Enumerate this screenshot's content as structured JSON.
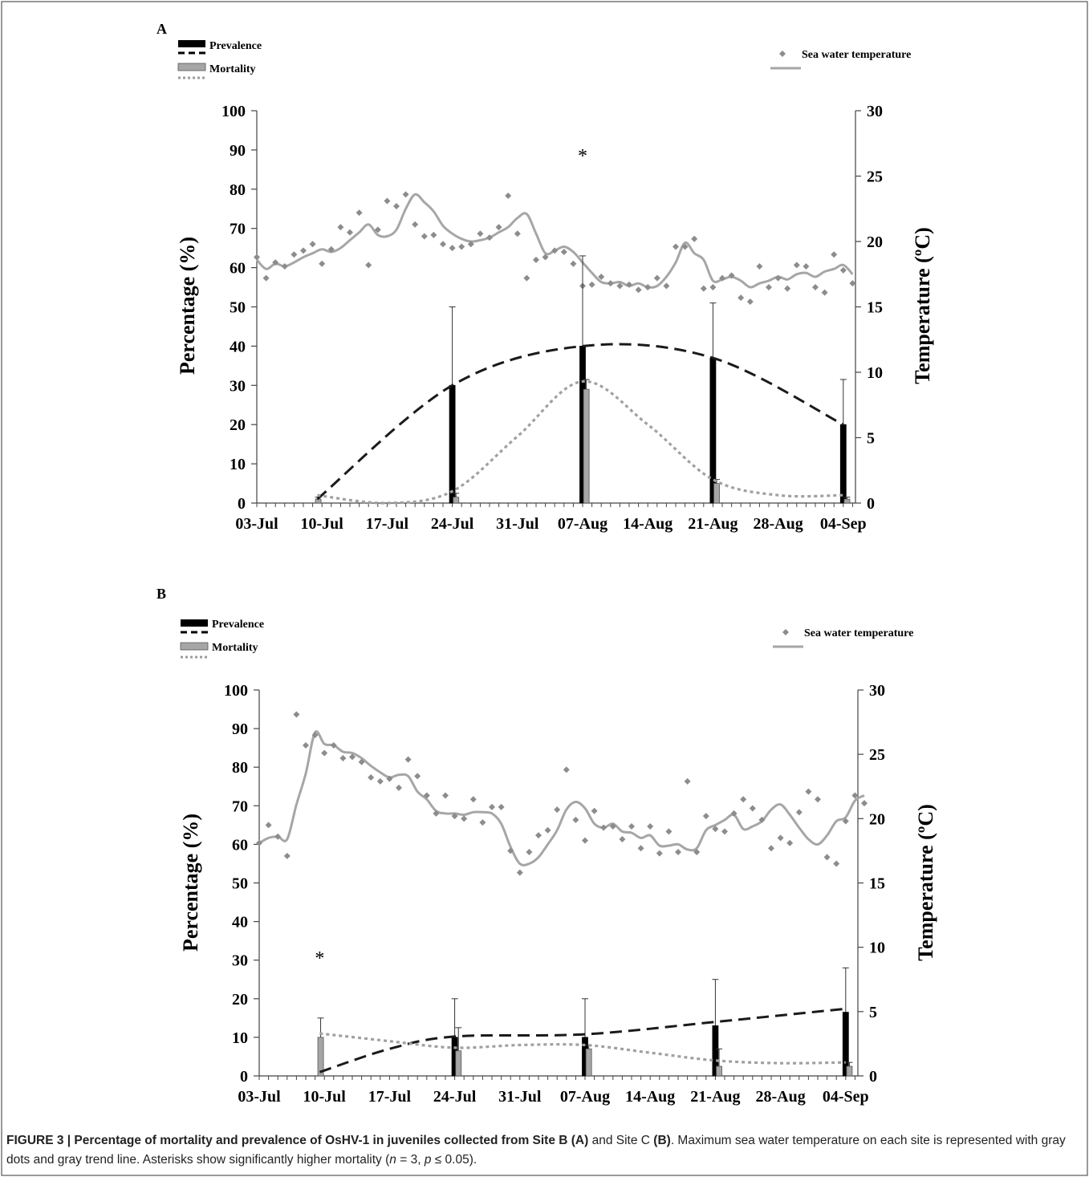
{
  "caption": {
    "bold_lead": "FIGURE 3 | Percentage of mortality and prevalence of OsHV-1 in juveniles collected from Site B",
    "p1": " (A) ",
    "p2": "and Site C",
    "p3": " (B)",
    "p4": ". Maximum sea water temperature on each site is represented with gray dots and gray trend line. Asterisks show significantly higher mortality (",
    "n": "n",
    "p5": " = 3, ",
    "p": "p",
    "p6": " ≤ 0.05)."
  },
  "colors": {
    "prevalence": "#000000",
    "mortality": "#a6a6a6",
    "temperature_points": "#8c8c8c",
    "temperature_line": "#a6a6a6"
  },
  "chart_data": [
    {
      "panel": "A",
      "type": "bar",
      "ylabel": "Percentage (%)",
      "y2label": "Temperature (ºC)",
      "ylim": [
        0,
        100
      ],
      "y2lim": [
        0,
        30
      ],
      "yticks": [
        "0",
        "10",
        "20",
        "30",
        "40",
        "50",
        "60",
        "70",
        "80",
        "90",
        "100"
      ],
      "y2ticks": [
        "0",
        "5",
        "10",
        "15",
        "20",
        "25",
        "30"
      ],
      "x_dates": [
        "03-Jul",
        "10-Jul",
        "17-Jul",
        "24-Jul",
        "31-Jul",
        "07-Aug",
        "14-Aug",
        "21-Aug",
        "28-Aug",
        "04-Sep"
      ],
      "legend": {
        "prevalence": "Prevalence",
        "mortality": "Mortality",
        "temperature": "Sea water temperature"
      },
      "asterisk": {
        "label": "*",
        "day": 35,
        "value": 89
      },
      "series": [
        {
          "name": "Prevalence",
          "kind": "bar",
          "points": [
            {
              "day": 21,
              "value": 30,
              "err": 50
            },
            {
              "day": 35,
              "value": 40,
              "err": 63
            },
            {
              "day": 49,
              "value": 37,
              "err": 51
            },
            {
              "day": 63,
              "value": 20,
              "err": 31.5
            }
          ]
        },
        {
          "name": "Mortality",
          "kind": "bar",
          "points": [
            {
              "day": 6.6,
              "value": 1,
              "err": 1.5
            },
            {
              "day": 21.4,
              "value": 1.5,
              "err": 2.5
            },
            {
              "day": 35.4,
              "value": 29,
              "err": 31.5
            },
            {
              "day": 49.4,
              "value": 5,
              "err": 6
            },
            {
              "day": 63.4,
              "value": 1,
              "err": 1.5
            }
          ]
        },
        {
          "name": "Prevalence",
          "kind": "trend",
          "x": [
            6.5,
            21,
            35,
            49,
            63
          ],
          "values": [
            1,
            30,
            40,
            37,
            20
          ]
        },
        {
          "name": "Mortality",
          "kind": "trend",
          "x": [
            6.5,
            14,
            21,
            28,
            35,
            42,
            49,
            56,
            63
          ],
          "values": [
            2,
            0,
            3,
            17,
            31,
            20,
            6,
            2,
            2
          ]
        },
        {
          "name": "Sea water temperature",
          "kind": "line",
          "axis": "right",
          "x": [
            0,
            1,
            2,
            3,
            4,
            5,
            6,
            7,
            8,
            9,
            10,
            11,
            12,
            13,
            14,
            15,
            16,
            17,
            18,
            19,
            20,
            21,
            22,
            23,
            24,
            25,
            26,
            27,
            28,
            29,
            30,
            31,
            32,
            33,
            34,
            35,
            36,
            37,
            38,
            39,
            40,
            41,
            42,
            43,
            44,
            45,
            46,
            47,
            48,
            49,
            50,
            51,
            52,
            53,
            54,
            55,
            56,
            57,
            58,
            59,
            60,
            61,
            62,
            63,
            64
          ],
          "values": [
            18.6,
            17.9,
            18.3,
            18.1,
            18.4,
            18.8,
            19.1,
            19.4,
            19.2,
            19.5,
            20.1,
            20.7,
            21.3,
            20.5,
            20.4,
            20.9,
            22.5,
            23.6,
            23.0,
            22.3,
            21.2,
            20.6,
            20.2,
            20.0,
            20.1,
            20.3,
            20.7,
            21.1,
            21.8,
            22.1,
            20.6,
            19.1,
            19.3,
            19.6,
            19.2,
            18.4,
            17.6,
            16.9,
            16.8,
            16.9,
            16.6,
            16.8,
            16.5,
            16.6,
            17.3,
            18.4,
            19.9,
            19.1,
            18.6,
            17.0,
            17.1,
            17.3,
            17.0,
            16.5,
            16.8,
            17.0,
            17.3,
            17.1,
            17.5,
            17.6,
            17.3,
            17.7,
            17.9,
            18.2,
            17.5
          ]
        },
        {
          "name": "Sea water temperature",
          "kind": "points",
          "axis": "right",
          "x": [
            0,
            1,
            2,
            3,
            4,
            5,
            6,
            7,
            8,
            9,
            10,
            11,
            12,
            13,
            14,
            15,
            16,
            17,
            18,
            19,
            20,
            21,
            22,
            23,
            24,
            25,
            26,
            27,
            28,
            29,
            30,
            31,
            32,
            33,
            34,
            35,
            36,
            37,
            38,
            39,
            40,
            41,
            42,
            43,
            44,
            45,
            46,
            47,
            48,
            49,
            50,
            51,
            52,
            53,
            54,
            55,
            56,
            57,
            58,
            59,
            60,
            61,
            62,
            63,
            64
          ],
          "values": [
            18.8,
            17.2,
            18.4,
            18.1,
            19.0,
            19.3,
            19.8,
            18.3,
            19.4,
            21.1,
            20.7,
            22.2,
            18.2,
            20.9,
            23.1,
            22.7,
            23.6,
            21.3,
            20.4,
            20.5,
            19.8,
            19.5,
            19.6,
            19.8,
            20.6,
            20.3,
            21.1,
            23.5,
            20.6,
            17.2,
            18.6,
            18.8,
            19.3,
            19.2,
            18.3,
            16.6,
            16.7,
            17.3,
            16.8,
            16.6,
            16.7,
            16.3,
            16.5,
            17.2,
            16.6,
            19.6,
            19.6,
            20.2,
            16.4,
            16.5,
            17.2,
            17.4,
            15.7,
            15.4,
            18.1,
            16.5,
            17.2,
            16.4,
            18.2,
            18.1,
            16.5,
            16.1,
            19.0,
            17.8,
            16.8
          ]
        }
      ]
    },
    {
      "panel": "B",
      "type": "bar",
      "ylabel": "Percentage (%)",
      "y2label": "Temperature (ºC)",
      "ylim": [
        0,
        100
      ],
      "y2lim": [
        0,
        30
      ],
      "yticks": [
        "0",
        "10",
        "20",
        "30",
        "40",
        "50",
        "60",
        "70",
        "80",
        "90",
        "100"
      ],
      "y2ticks": [
        "0",
        "5",
        "10",
        "15",
        "20",
        "25",
        "30"
      ],
      "x_dates": [
        "03-Jul",
        "10-Jul",
        "17-Jul",
        "24-Jul",
        "31-Jul",
        "07-Aug",
        "14-Aug",
        "21-Aug",
        "28-Aug",
        "04-Sep"
      ],
      "legend": {
        "prevalence": "Prevalence",
        "mortality": "Mortality",
        "temperature": "Sea water temperature"
      },
      "asterisk": {
        "label": "*",
        "day": 6.5,
        "value": 31
      },
      "series": [
        {
          "name": "Prevalence",
          "kind": "bar",
          "points": [
            {
              "day": 21,
              "value": 10,
              "err": 20
            },
            {
              "day": 35,
              "value": 10,
              "err": 20
            },
            {
              "day": 49,
              "value": 13,
              "err": 25
            },
            {
              "day": 63,
              "value": 16.5,
              "err": 28
            }
          ]
        },
        {
          "name": "Mortality",
          "kind": "bar",
          "points": [
            {
              "day": 6.6,
              "value": 10,
              "err": 15
            },
            {
              "day": 21.4,
              "value": 6.5,
              "err": 12.5
            },
            {
              "day": 35.4,
              "value": 7,
              "err": 8
            },
            {
              "day": 49.4,
              "value": 2.5,
              "err": 7
            },
            {
              "day": 63.4,
              "value": 2.5,
              "err": 3.5
            }
          ]
        },
        {
          "name": "Prevalence",
          "kind": "trend",
          "x": [
            6.5,
            14,
            21,
            35,
            49,
            63
          ],
          "values": [
            1,
            7,
            10.2,
            10.8,
            14,
            17.4
          ]
        },
        {
          "name": "Mortality",
          "kind": "trend",
          "x": [
            6.5,
            14,
            21,
            28,
            35,
            42,
            49,
            56,
            63
          ],
          "values": [
            11,
            9,
            7.3,
            8,
            8,
            6,
            4,
            3.3,
            3.5
          ]
        },
        {
          "name": "Sea water temperature",
          "kind": "line",
          "axis": "right",
          "x": [
            0,
            1,
            2,
            3,
            4,
            5,
            6,
            7,
            8,
            9,
            10,
            11,
            12,
            13,
            14,
            15,
            16,
            17,
            18,
            19,
            20,
            21,
            22,
            23,
            24,
            25,
            26,
            27,
            28,
            29,
            30,
            31,
            32,
            33,
            34,
            35,
            36,
            37,
            38,
            39,
            40,
            41,
            42,
            43,
            44,
            45,
            46,
            47,
            48,
            49,
            50,
            51,
            52,
            53,
            54,
            55,
            56,
            57,
            58,
            59,
            60,
            61,
            62,
            63,
            64,
            65
          ],
          "values": [
            18.1,
            18.5,
            18.6,
            18.4,
            21.1,
            23.5,
            26.7,
            25.8,
            25.7,
            25.2,
            25.1,
            24.7,
            24.1,
            23.6,
            23.2,
            23.4,
            23.3,
            22.1,
            21.5,
            20.6,
            20.4,
            20.4,
            20.3,
            20.5,
            20.5,
            20.4,
            19.6,
            17.8,
            16.5,
            16.5,
            17.0,
            18.0,
            19.1,
            20.7,
            21.3,
            20.8,
            19.6,
            19.3,
            19.6,
            19.0,
            18.9,
            18.5,
            18.7,
            17.9,
            17.9,
            18.0,
            17.6,
            17.7,
            19.1,
            19.5,
            19.9,
            20.3,
            19.2,
            19.4,
            19.8,
            20.7,
            21.1,
            20.3,
            19.3,
            18.4,
            18.0,
            18.7,
            19.8,
            20.1,
            21.4,
            21.8
          ]
        },
        {
          "name": "Sea water temperature",
          "kind": "points",
          "axis": "right",
          "x": [
            0,
            1,
            2,
            3,
            4,
            5,
            6,
            7,
            8,
            9,
            10,
            11,
            12,
            13,
            14,
            15,
            16,
            17,
            18,
            19,
            20,
            21,
            22,
            23,
            24,
            25,
            26,
            27,
            28,
            29,
            30,
            31,
            32,
            33,
            34,
            35,
            36,
            37,
            38,
            39,
            40,
            41,
            42,
            43,
            44,
            45,
            46,
            47,
            48,
            49,
            50,
            51,
            52,
            53,
            54,
            55,
            56,
            57,
            58,
            59,
            60,
            61,
            62,
            63,
            64,
            65
          ],
          "values": [
            18.1,
            19.5,
            18.6,
            17.1,
            28.1,
            25.7,
            26.5,
            25.1,
            25.7,
            24.7,
            24.8,
            24.4,
            23.2,
            22.9,
            23.1,
            22.4,
            24.6,
            23.3,
            21.8,
            20.4,
            21.8,
            20.2,
            20.0,
            21.5,
            19.7,
            20.9,
            20.9,
            17.5,
            15.8,
            17.4,
            18.7,
            19.1,
            20.7,
            23.8,
            19.9,
            18.3,
            20.6,
            19.3,
            19.4,
            18.4,
            19.4,
            17.7,
            19.4,
            17.3,
            19.0,
            17.4,
            22.9,
            17.4,
            20.2,
            19.2,
            19.0,
            20.4,
            21.5,
            20.8,
            19.9,
            17.7,
            18.5,
            18.1,
            20.5,
            22.1,
            21.5,
            17.0,
            16.5,
            19.8,
            21.8,
            21.2
          ]
        }
      ]
    }
  ]
}
